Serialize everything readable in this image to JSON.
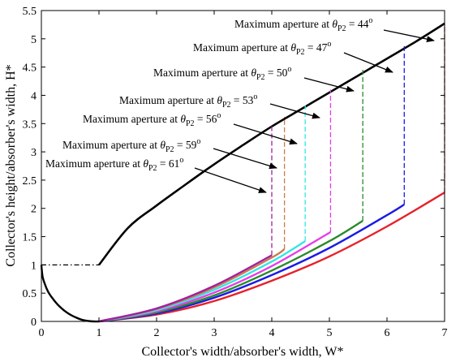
{
  "chart_data": {
    "type": "line",
    "xlabel": "Collector's width/absorber's width, W*",
    "ylabel": "Collector's height/absorber's width, H*",
    "xlim": [
      0,
      7
    ],
    "ylim": [
      0,
      5.5
    ],
    "xticks": [
      "0",
      "1",
      "2",
      "3",
      "4",
      "5",
      "6",
      "7"
    ],
    "yticks": [
      "0",
      "0.5",
      "1",
      "1.5",
      "2",
      "2.5",
      "3",
      "3.5",
      "4",
      "4.5",
      "5",
      "5.5"
    ],
    "grid": false,
    "colors": {
      "boundary": "#000000",
      "t44": "#e8202a",
      "t47": "#1a1ae6",
      "t50": "#2a8a2a",
      "t53": "#e63ee6",
      "t56": "#33e6e6",
      "t59": "#cc7a4d",
      "t61": "#a020a0"
    },
    "boundary_curve": {
      "x": [
        1.0,
        1.5,
        2.0,
        2.5,
        3.0,
        3.5,
        4.0,
        4.5,
        5.0,
        5.5,
        6.0,
        6.5,
        7.0
      ],
      "y": [
        1.0,
        1.65,
        2.05,
        2.42,
        2.78,
        3.12,
        3.45,
        3.75,
        4.05,
        4.35,
        4.65,
        4.95,
        5.27
      ]
    },
    "dashdot_segment": {
      "x": [
        0,
        1
      ],
      "y": [
        1,
        1
      ]
    },
    "absorber_arc": {
      "x": [
        0,
        0.02,
        0.06,
        0.12,
        0.2,
        0.3,
        0.4,
        0.5,
        0.6,
        0.7,
        0.8,
        0.9,
        1.0
      ],
      "y": [
        1.0,
        0.8,
        0.66,
        0.52,
        0.4,
        0.28,
        0.19,
        0.12,
        0.07,
        0.03,
        0.01,
        0.0,
        0.0
      ]
    },
    "series": [
      {
        "theta": "44",
        "color_key": "t44",
        "x": [
          1.0,
          2.0,
          3.0,
          4.0,
          5.0,
          6.0,
          7.0
        ],
        "y": [
          0.0,
          0.12,
          0.36,
          0.72,
          1.15,
          1.68,
          2.28
        ],
        "aperture": {
          "x": 7.0,
          "y_top": 5.27
        }
      },
      {
        "theta": "47",
        "color_key": "t47",
        "x": [
          1.0,
          2.0,
          3.0,
          4.0,
          5.0,
          6.0,
          6.3
        ],
        "y": [
          0.0,
          0.14,
          0.42,
          0.82,
          1.3,
          1.88,
          2.07
        ],
        "aperture": {
          "x": 6.3,
          "y_top": 4.9
        }
      },
      {
        "theta": "50",
        "color_key": "t50",
        "x": [
          1.0,
          2.0,
          3.0,
          4.0,
          5.0,
          5.58
        ],
        "y": [
          0.0,
          0.16,
          0.46,
          0.9,
          1.42,
          1.78
        ],
        "aperture": {
          "x": 5.58,
          "y_top": 4.45
        }
      },
      {
        "theta": "53",
        "color_key": "t53",
        "x": [
          1.0,
          2.0,
          3.0,
          4.0,
          5.02
        ],
        "y": [
          0.0,
          0.18,
          0.51,
          0.98,
          1.58
        ],
        "aperture": {
          "x": 5.02,
          "y_top": 4.1
        }
      },
      {
        "theta": "56",
        "color_key": "t56",
        "x": [
          1.0,
          2.0,
          3.0,
          4.0,
          4.58
        ],
        "y": [
          0.0,
          0.2,
          0.56,
          1.06,
          1.42
        ],
        "aperture": {
          "x": 4.58,
          "y_top": 3.82
        }
      },
      {
        "theta": "59",
        "color_key": "t59",
        "x": [
          1.0,
          2.0,
          3.0,
          4.0,
          4.22
        ],
        "y": [
          0.0,
          0.22,
          0.6,
          1.13,
          1.28
        ],
        "aperture": {
          "x": 4.22,
          "y_top": 3.62
        }
      },
      {
        "theta": "61",
        "color_key": "t61",
        "x": [
          1.0,
          2.0,
          3.0,
          4.0
        ],
        "y": [
          0.0,
          0.23,
          0.63,
          1.17
        ],
        "aperture": {
          "x": 4.0,
          "y_top": 3.45
        }
      }
    ],
    "annotations": [
      {
        "text": "Maximum aperture at",
        "theta_sym": "θ",
        "sub": "P2",
        "eq": " = ",
        "val": "44",
        "deg": "o"
      },
      {
        "text": "Maximum aperture at",
        "theta_sym": "θ",
        "sub": "P2",
        "eq": " = ",
        "val": "47",
        "deg": "o"
      },
      {
        "text": "Maximum aperture at",
        "theta_sym": "θ",
        "sub": "P2",
        "eq": " = ",
        "val": "50",
        "deg": "o"
      },
      {
        "text": "Maximum aperture at",
        "theta_sym": "θ",
        "sub": "P2",
        "eq": " = ",
        "val": "53",
        "deg": "o"
      },
      {
        "text": "Maximum aperture at",
        "theta_sym": "θ",
        "sub": "P2",
        "eq": " = ",
        "val": "56",
        "deg": "o"
      },
      {
        "text": "Maximum aperture at",
        "theta_sym": "θ",
        "sub": "P2",
        "eq": " = ",
        "val": "59",
        "deg": "o"
      },
      {
        "text": "Maximum aperture at",
        "theta_sym": "θ",
        "sub": "P2",
        "eq": " = ",
        "val": "61",
        "deg": "o"
      }
    ]
  }
}
